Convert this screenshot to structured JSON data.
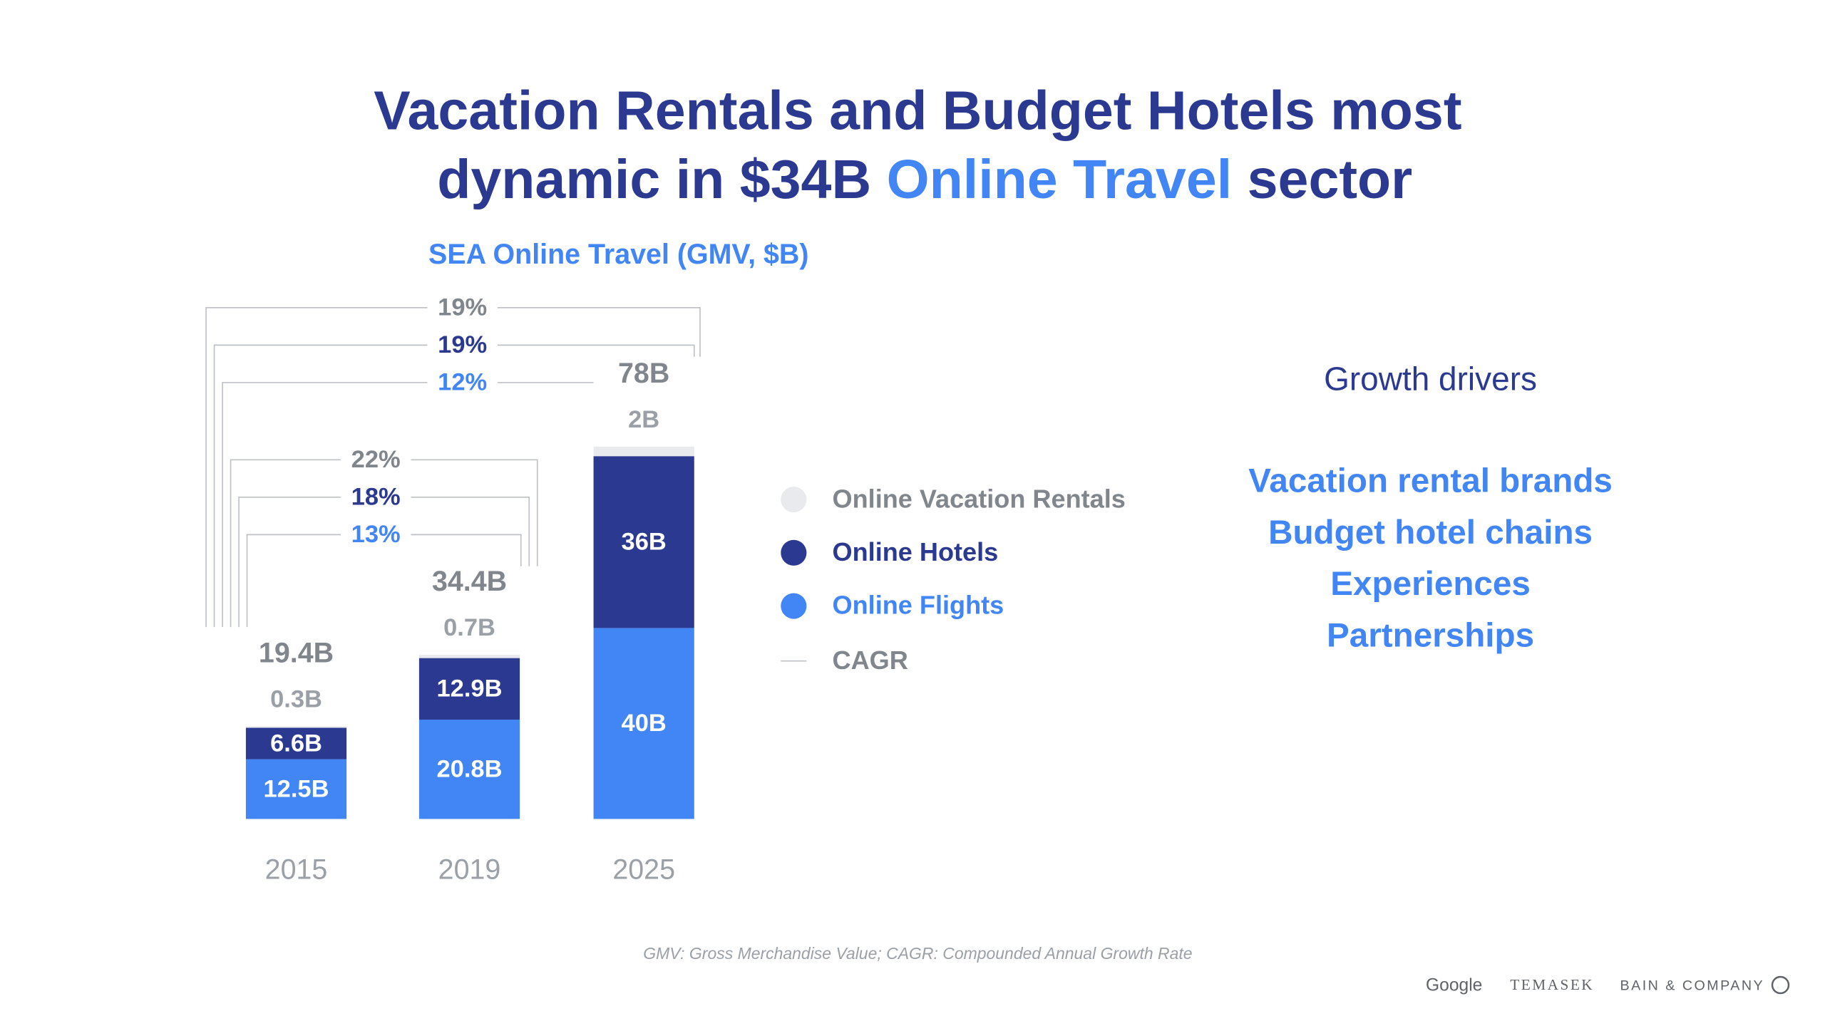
{
  "chart_data": {
    "type": "bar",
    "stacked": true,
    "title": [
      "Vacation Rentals and Budget Hotels most",
      "dynamic in $34B ",
      "Online Travel",
      " sector"
    ],
    "subtitle": "SEA Online Travel (GMV, $B)",
    "categories": [
      "2015",
      "2019",
      "2025"
    ],
    "series": [
      {
        "name": "Online Flights",
        "color": "#4285f4",
        "values": [
          12.5,
          20.8,
          40
        ],
        "value_labels": [
          "12.5B",
          "20.8B",
          "40B"
        ]
      },
      {
        "name": "Online Hotels",
        "color": "#2b3990",
        "values": [
          6.6,
          12.9,
          36
        ],
        "value_labels": [
          "6.6B",
          "12.9B",
          "36B"
        ]
      },
      {
        "name": "Online Vacation Rentals",
        "color": "#e8eaed",
        "values": [
          0.3,
          0.7,
          2
        ],
        "value_labels": [
          "0.3B",
          "0.7B",
          "2B"
        ]
      }
    ],
    "totals": {
      "values": [
        19.4,
        34.4,
        78
      ],
      "value_labels": [
        "19.4B",
        "34.4B",
        "78B"
      ]
    },
    "cagr": [
      {
        "from": "2015",
        "to": "2025",
        "values": [
          19,
          19,
          12
        ],
        "value_labels": [
          "19%",
          "19%",
          "12%"
        ],
        "colors": [
          "#80868b",
          "#2b3990",
          "#4285f4"
        ]
      },
      {
        "from": "2015",
        "to": "2019",
        "values": [
          22,
          18,
          13
        ],
        "value_labels": [
          "22%",
          "18%",
          "13%"
        ],
        "colors": [
          "#80868b",
          "#2b3990",
          "#4285f4"
        ]
      }
    ],
    "legend_cagr": "CAGR",
    "growth_drivers": {
      "title": "Growth drivers",
      "items": [
        "Vacation rental brands",
        "Budget hotel chains",
        "Experiences",
        "Partnerships"
      ]
    },
    "footnote": "GMV: Gross Merchandise Value; CAGR: Compounded Annual Growth Rate",
    "logos": [
      "Google",
      "TEMASEK",
      "BAIN & COMPANY"
    ]
  }
}
